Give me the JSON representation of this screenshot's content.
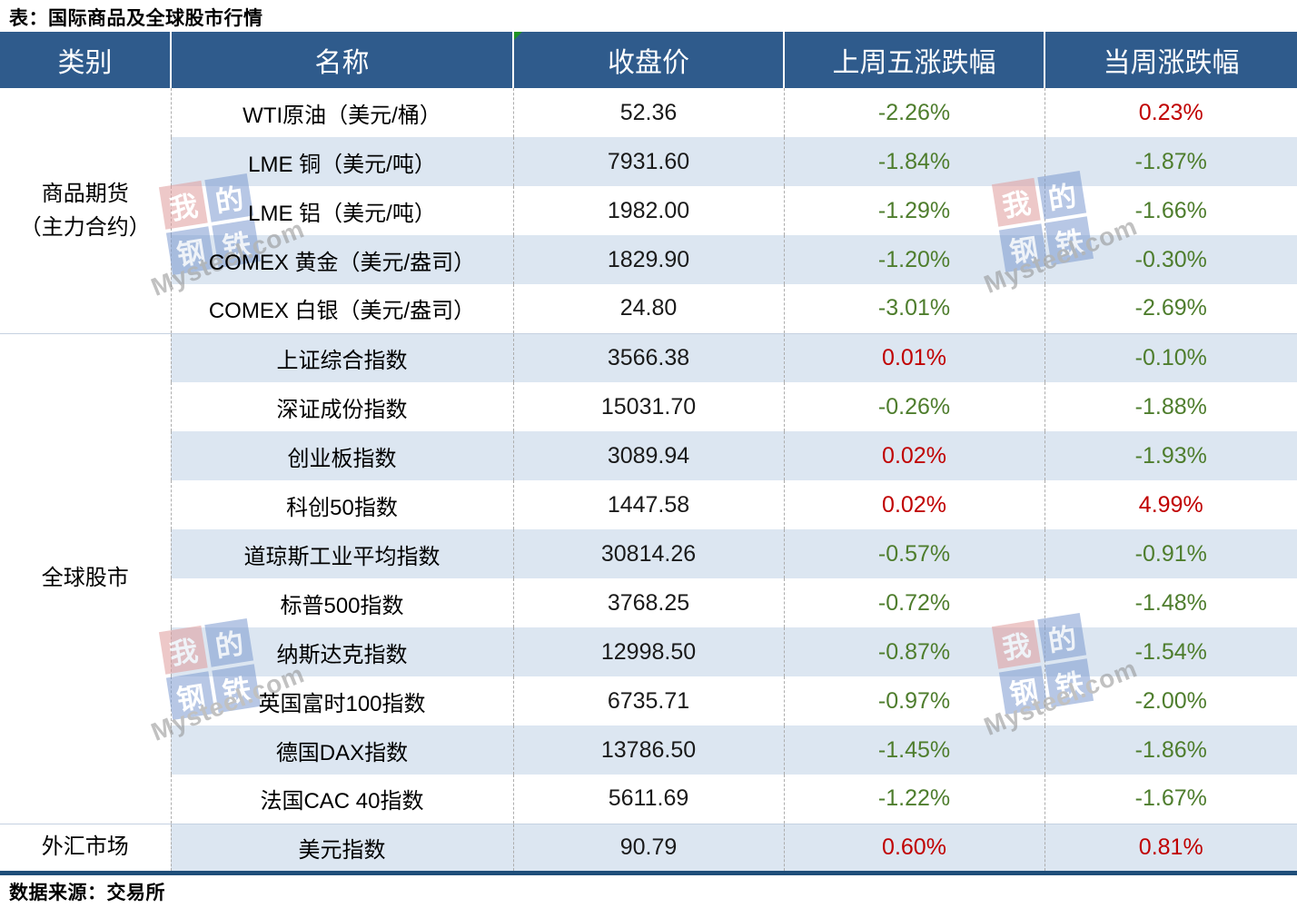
{
  "title": "表：国际商品及全球股市行情",
  "footer": "数据来源：交易所",
  "colors": {
    "header_bg": "#2F5B8C",
    "alt_row_bg": "#DCE6F1",
    "up_red": "#C00000",
    "down_green": "#4E7D2D",
    "table_bottom_border": "#1F4E79",
    "group_divider_line": "#C5D1E1",
    "corner_triangle_green": "#1F9324"
  },
  "watermark": {
    "squares": [
      {
        "ch": "我",
        "color": "red"
      },
      {
        "ch": "的",
        "color": "blue"
      },
      {
        "ch": "钢",
        "color": "blue"
      },
      {
        "ch": "铁",
        "color": "blue"
      }
    ],
    "text": "Mysteel.com"
  },
  "chart_data": {
    "type": "table",
    "title": "表：国际商品及全球股市行情",
    "columns": [
      "类别",
      "名称",
      "收盘价",
      "上周五涨跌幅",
      "当周涨跌幅"
    ],
    "groups": [
      {
        "category": "商品期货\n（主力合约）",
        "rows": [
          {
            "name": "WTI原油（美元/桶）",
            "close": "52.36",
            "friday": "-2.26%",
            "week": "0.23%"
          },
          {
            "name": "LME 铜（美元/吨）",
            "close": "7931.60",
            "friday": "-1.84%",
            "week": "-1.87%"
          },
          {
            "name": "LME 铝（美元/吨）",
            "close": "1982.00",
            "friday": "-1.29%",
            "week": "-1.66%"
          },
          {
            "name": "COMEX 黄金（美元/盎司）",
            "close": "1829.90",
            "friday": "-1.20%",
            "week": "-0.30%"
          },
          {
            "name": "COMEX 白银（美元/盎司）",
            "close": "24.80",
            "friday": "-3.01%",
            "week": "-2.69%"
          }
        ]
      },
      {
        "category": "全球股市",
        "rows": [
          {
            "name": "上证综合指数",
            "close": "3566.38",
            "friday": "0.01%",
            "week": "-0.10%"
          },
          {
            "name": "深证成份指数",
            "close": "15031.70",
            "friday": "-0.26%",
            "week": "-1.88%"
          },
          {
            "name": "创业板指数",
            "close": "3089.94",
            "friday": "0.02%",
            "week": "-1.93%"
          },
          {
            "name": "科创50指数",
            "close": "1447.58",
            "friday": "0.02%",
            "week": "4.99%"
          },
          {
            "name": "道琼斯工业平均指数",
            "close": "30814.26",
            "friday": "-0.57%",
            "week": "-0.91%"
          },
          {
            "name": "标普500指数",
            "close": "3768.25",
            "friday": "-0.72%",
            "week": "-1.48%"
          },
          {
            "name": "纳斯达克指数",
            "close": "12998.50",
            "friday": "-0.87%",
            "week": "-1.54%"
          },
          {
            "name": "英国富时100指数",
            "close": "6735.71",
            "friday": "-0.97%",
            "week": "-2.00%"
          },
          {
            "name": "德国DAX指数",
            "close": "13786.50",
            "friday": "-1.45%",
            "week": "-1.86%"
          },
          {
            "name": "法国CAC 40指数",
            "close": "5611.69",
            "friday": "-1.22%",
            "week": "-1.67%"
          }
        ]
      },
      {
        "category": "外汇市场",
        "rows": [
          {
            "name": "美元指数",
            "close": "90.79",
            "friday": "0.60%",
            "week": "0.81%"
          }
        ]
      }
    ]
  }
}
